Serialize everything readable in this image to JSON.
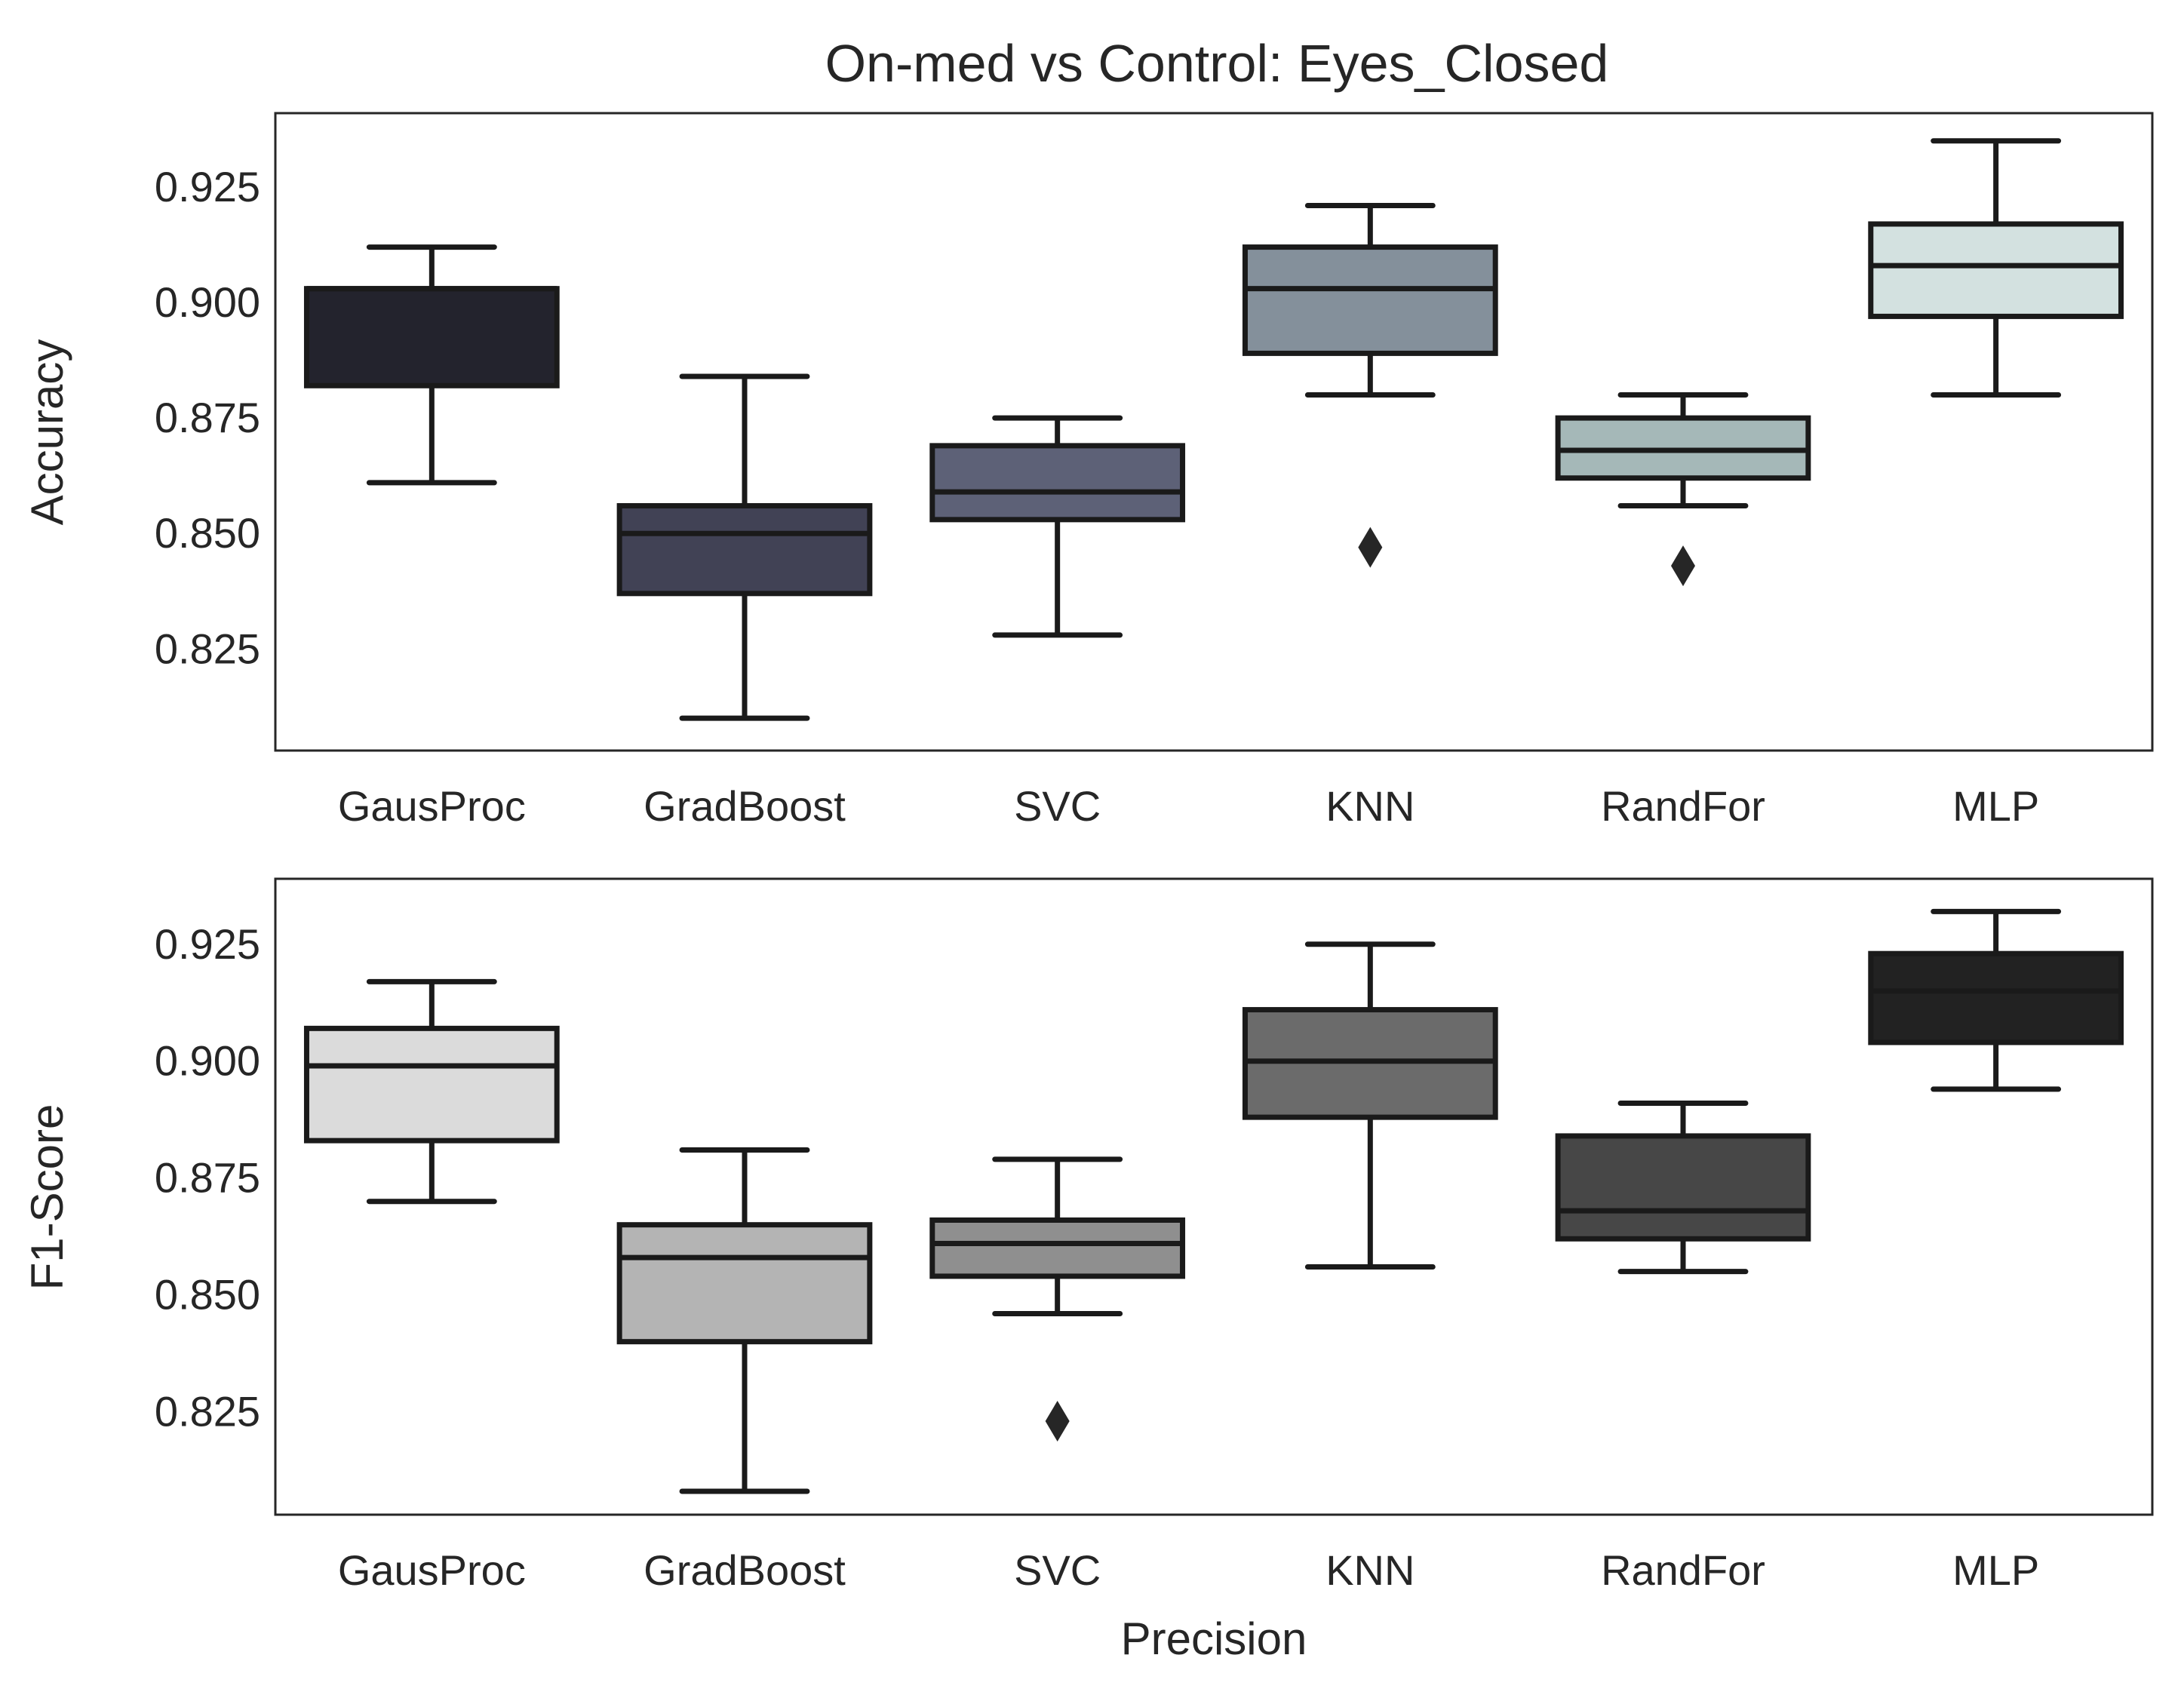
{
  "figure": {
    "title": "On-med vs Control: Eyes_Closed"
  },
  "chart_data": [
    {
      "type": "box",
      "title": "On-med vs Control: Eyes_Closed",
      "xlabel": "",
      "ylabel": "Accuracy",
      "categories": [
        "GausProc",
        "GradBoost",
        "SVC",
        "KNN",
        "RandFor",
        "MLP"
      ],
      "ylim": [
        0.803,
        0.941
      ],
      "yticks": [
        0.825,
        0.85,
        0.875,
        0.9,
        0.925
      ],
      "ytick_labels": [
        "0.825",
        "0.850",
        "0.875",
        "0.900",
        "0.925"
      ],
      "grid": false,
      "boxes": [
        {
          "category": "GausProc",
          "color": "#23232d",
          "whisker_low": 0.861,
          "q1": 0.882,
          "median": 0.903,
          "q3": 0.903,
          "whisker_high": 0.912,
          "outliers": []
        },
        {
          "category": "GradBoost",
          "color": "#414255",
          "whisker_low": 0.81,
          "q1": 0.837,
          "median": 0.85,
          "q3": 0.856,
          "whisker_high": 0.884,
          "outliers": []
        },
        {
          "category": "SVC",
          "color": "#5d6177",
          "whisker_low": 0.828,
          "q1": 0.853,
          "median": 0.859,
          "q3": 0.869,
          "whisker_high": 0.875,
          "outliers": []
        },
        {
          "category": "KNN",
          "color": "#84909b",
          "whisker_low": 0.88,
          "q1": 0.889,
          "median": 0.903,
          "q3": 0.912,
          "whisker_high": 0.921,
          "outliers": [
            0.847
          ]
        },
        {
          "category": "RandFor",
          "color": "#a5b8b8",
          "whisker_low": 0.856,
          "q1": 0.862,
          "median": 0.868,
          "q3": 0.875,
          "whisker_high": 0.88,
          "outliers": [
            0.843
          ]
        },
        {
          "category": "MLP",
          "color": "#d3e1e0",
          "whisker_low": 0.88,
          "q1": 0.897,
          "median": 0.908,
          "q3": 0.917,
          "whisker_high": 0.935,
          "outliers": []
        }
      ]
    },
    {
      "type": "box",
      "title": "",
      "xlabel": "Precision",
      "ylabel": "F1-Score",
      "categories": [
        "GausProc",
        "GradBoost",
        "SVC",
        "KNN",
        "RandFor",
        "MLP"
      ],
      "ylim": [
        0.803,
        0.939
      ],
      "yticks": [
        0.825,
        0.85,
        0.875,
        0.9,
        0.925
      ],
      "ytick_labels": [
        "0.825",
        "0.850",
        "0.875",
        "0.900",
        "0.925"
      ],
      "grid": false,
      "boxes": [
        {
          "category": "GausProc",
          "color": "#dbdbdb",
          "whisker_low": 0.87,
          "q1": 0.883,
          "median": 0.899,
          "q3": 0.907,
          "whisker_high": 0.917,
          "outliers": []
        },
        {
          "category": "GradBoost",
          "color": "#b4b4b4",
          "whisker_low": 0.808,
          "q1": 0.84,
          "median": 0.858,
          "q3": 0.865,
          "whisker_high": 0.881,
          "outliers": []
        },
        {
          "category": "SVC",
          "color": "#8f8f8f",
          "whisker_low": 0.846,
          "q1": 0.854,
          "median": 0.861,
          "q3": 0.866,
          "whisker_high": 0.879,
          "outliers": [
            0.823
          ]
        },
        {
          "category": "KNN",
          "color": "#6b6b6b",
          "whisker_low": 0.856,
          "q1": 0.888,
          "median": 0.9,
          "q3": 0.911,
          "whisker_high": 0.925,
          "outliers": []
        },
        {
          "category": "RandFor",
          "color": "#474747",
          "whisker_low": 0.855,
          "q1": 0.862,
          "median": 0.868,
          "q3": 0.884,
          "whisker_high": 0.891,
          "outliers": []
        },
        {
          "category": "MLP",
          "color": "#222222",
          "whisker_low": 0.894,
          "q1": 0.904,
          "median": 0.915,
          "q3": 0.923,
          "whisker_high": 0.932,
          "outliers": []
        }
      ]
    }
  ]
}
